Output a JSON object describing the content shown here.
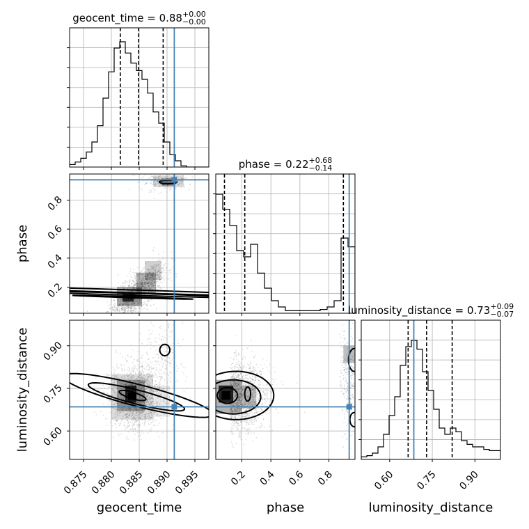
{
  "chart_data": {
    "type": "corner",
    "parameters": [
      "geocent_time",
      "phase",
      "luminosity_distance"
    ],
    "titles": [
      {
        "parameter": "geocent_time",
        "prefix": "geocent_time = ",
        "median": "0.88",
        "plus": "+0.00",
        "minus": "−0.00"
      },
      {
        "parameter": "phase",
        "prefix": "phase = ",
        "median": "0.22",
        "plus": "+0.68",
        "minus": "−0.14"
      },
      {
        "parameter": "luminosity_distance",
        "prefix": "luminosity_distance = ",
        "median": "0.73",
        "plus": "+0.09",
        "minus": "−0.07"
      }
    ],
    "axis_labels": {
      "geocent_time": "geocent_time",
      "phase": "phase",
      "luminosity_distance": "luminosity_distance"
    },
    "ranges": {
      "geocent_time": [
        0.8725,
        0.8975
      ],
      "phase": [
        0.02,
        0.98
      ],
      "luminosity_distance": [
        0.5,
        0.99
      ]
    },
    "ticks": {
      "geocent_time": {
        "values": [
          0.875,
          0.88,
          0.885,
          0.89,
          0.895
        ],
        "labels": [
          "0.875",
          "0.880",
          "0.885",
          "0.890",
          "0.895"
        ]
      },
      "phase": {
        "values": [
          0.2,
          0.4,
          0.6,
          0.8
        ],
        "labels": [
          "0.2",
          "0.4",
          "0.6",
          "0.8"
        ]
      },
      "luminosity_distance": {
        "values": [
          0.6,
          0.75,
          0.9
        ],
        "labels": [
          "0.60",
          "0.75",
          "0.90"
        ]
      }
    },
    "truths": {
      "geocent_time": 0.8913,
      "phase": 0.94,
      "luminosity_distance": 0.685
    },
    "quantiles": {
      "geocent_time": [
        0.8816,
        0.8849,
        0.8893
      ],
      "phase": [
        0.08,
        0.22,
        0.9
      ],
      "luminosity_distance": [
        0.665,
        0.73,
        0.82
      ]
    },
    "histograms": {
      "geocent_time": {
        "edges_start": 0.8725,
        "bin_width": 0.001,
        "counts": [
          0.02,
          0.04,
          0.07,
          0.12,
          0.2,
          0.33,
          0.55,
          0.76,
          0.95,
          1.0,
          0.91,
          0.83,
          0.77,
          0.7,
          0.59,
          0.44,
          0.35,
          0.2,
          0.1,
          0.05,
          0.01,
          0.0,
          0.0,
          0.0,
          0.0
        ]
      },
      "phase": {
        "edges_start": 0.02,
        "bin_width": 0.048,
        "counts": [
          0.95,
          0.83,
          0.7,
          0.5,
          0.45,
          0.55,
          0.32,
          0.2,
          0.1,
          0.05,
          0.02,
          0.02,
          0.02,
          0.02,
          0.02,
          0.03,
          0.05,
          0.1,
          0.6,
          0.53
        ]
      },
      "luminosity_distance": {
        "edges_start": 0.5,
        "bin_width": 0.0196,
        "counts": [
          0.02,
          0.03,
          0.05,
          0.1,
          0.2,
          0.35,
          0.5,
          0.75,
          0.9,
          0.95,
          0.88,
          0.7,
          0.55,
          0.4,
          0.25,
          0.2,
          0.25,
          0.22,
          0.15,
          0.12,
          0.1,
          0.1,
          0.08,
          0.07,
          0.07
        ]
      }
    },
    "grid": true,
    "truth_color": "#4682b4"
  }
}
